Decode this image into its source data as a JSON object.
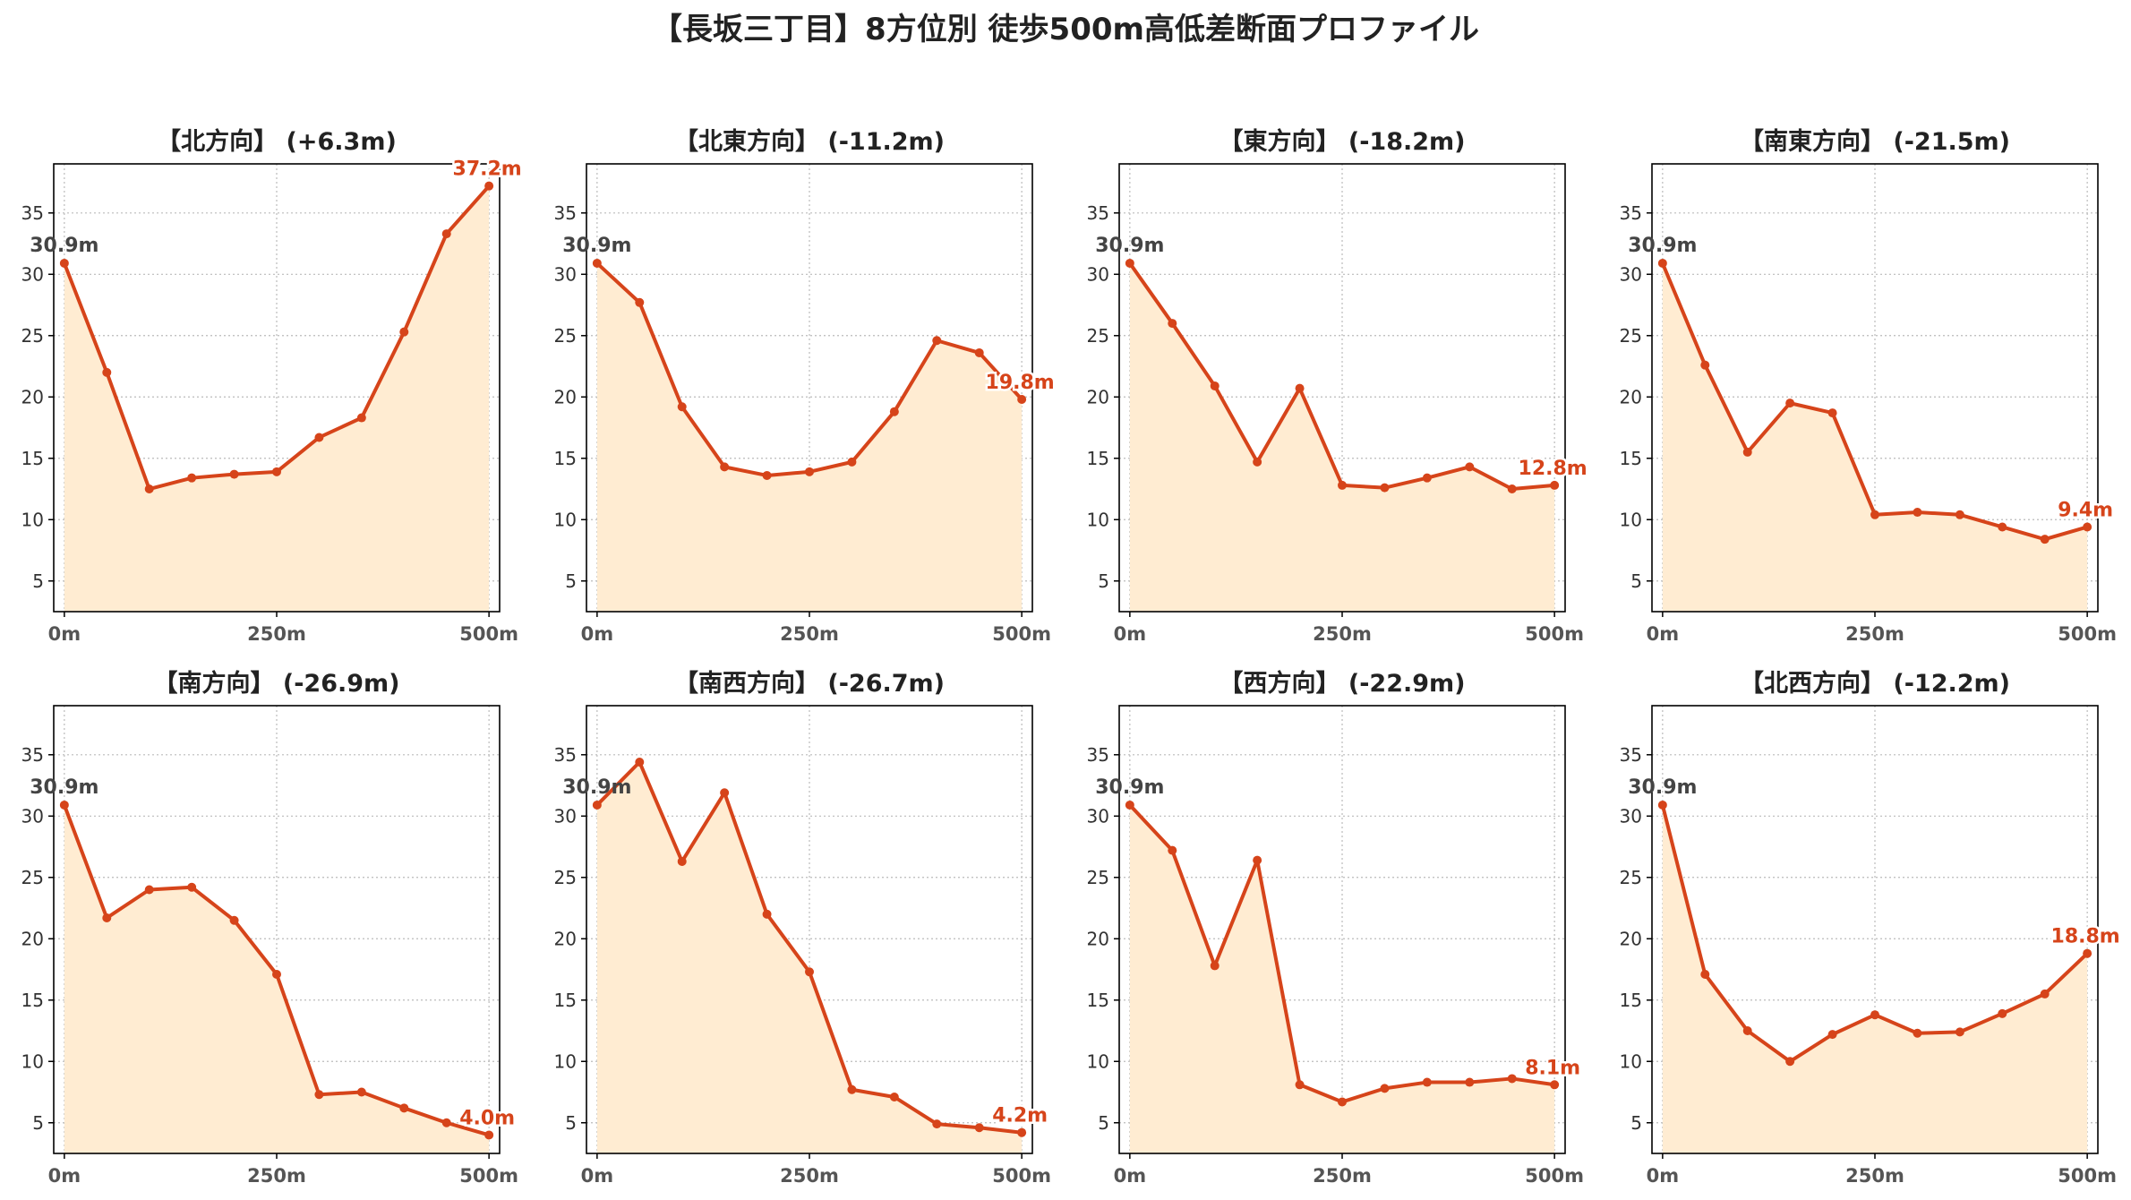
{
  "title": "【長坂三丁目】8方位別 徒歩500m高低差断面プロファイル",
  "colors": {
    "line": "#d6441a",
    "fill": "#ffecd2",
    "start_label": "#444444",
    "end_label": "#d6441a",
    "grid": "#bbbbbb"
  },
  "chart_data": [
    {
      "type": "area",
      "title": "【北方向】 (+6.3m)",
      "x": [
        0,
        50,
        100,
        150,
        200,
        250,
        300,
        350,
        400,
        450,
        500
      ],
      "values": [
        30.9,
        22.0,
        12.5,
        13.4,
        13.7,
        13.9,
        16.7,
        18.3,
        25.3,
        33.3,
        37.2
      ],
      "xticks": [
        "0m",
        "250m",
        "500m"
      ],
      "yticks": [
        5,
        10,
        15,
        20,
        25,
        30,
        35
      ],
      "ylim": [
        2.5,
        39
      ],
      "start_label": "30.9m",
      "end_label": "37.2m",
      "grid": true
    },
    {
      "type": "area",
      "title": "【北東方向】 (-11.2m)",
      "x": [
        0,
        50,
        100,
        150,
        200,
        250,
        300,
        350,
        400,
        450,
        500
      ],
      "values": [
        30.9,
        27.7,
        19.2,
        14.3,
        13.6,
        13.9,
        14.7,
        18.8,
        24.6,
        23.6,
        19.8
      ],
      "xticks": [
        "0m",
        "250m",
        "500m"
      ],
      "yticks": [
        5,
        10,
        15,
        20,
        25,
        30,
        35
      ],
      "ylim": [
        2.5,
        39
      ],
      "start_label": "30.9m",
      "end_label": "19.8m",
      "grid": true
    },
    {
      "type": "area",
      "title": "【東方向】 (-18.2m)",
      "x": [
        0,
        50,
        100,
        150,
        200,
        250,
        300,
        350,
        400,
        450,
        500
      ],
      "values": [
        30.9,
        26.0,
        20.9,
        14.7,
        20.7,
        12.8,
        12.6,
        13.4,
        14.3,
        12.5,
        12.8
      ],
      "xticks": [
        "0m",
        "250m",
        "500m"
      ],
      "yticks": [
        5,
        10,
        15,
        20,
        25,
        30,
        35
      ],
      "ylim": [
        2.5,
        39
      ],
      "start_label": "30.9m",
      "end_label": "12.8m",
      "grid": true
    },
    {
      "type": "area",
      "title": "【南東方向】 (-21.5m)",
      "x": [
        0,
        50,
        100,
        150,
        200,
        250,
        300,
        350,
        400,
        450,
        500
      ],
      "values": [
        30.9,
        22.6,
        15.5,
        19.5,
        18.7,
        10.4,
        10.6,
        10.4,
        9.4,
        8.4,
        9.4
      ],
      "xticks": [
        "0m",
        "250m",
        "500m"
      ],
      "yticks": [
        5,
        10,
        15,
        20,
        25,
        30,
        35
      ],
      "ylim": [
        2.5,
        39
      ],
      "start_label": "30.9m",
      "end_label": "9.4m",
      "grid": true
    },
    {
      "type": "area",
      "title": "【南方向】 (-26.9m)",
      "x": [
        0,
        50,
        100,
        150,
        200,
        250,
        300,
        350,
        400,
        450,
        500
      ],
      "values": [
        30.9,
        21.7,
        24.0,
        24.2,
        21.5,
        17.1,
        7.3,
        7.5,
        6.2,
        5.0,
        4.0
      ],
      "xticks": [
        "0m",
        "250m",
        "500m"
      ],
      "yticks": [
        5,
        10,
        15,
        20,
        25,
        30,
        35
      ],
      "ylim": [
        2.5,
        39
      ],
      "start_label": "30.9m",
      "end_label": "4.0m",
      "grid": true
    },
    {
      "type": "area",
      "title": "【南西方向】 (-26.7m)",
      "x": [
        0,
        50,
        100,
        150,
        200,
        250,
        300,
        350,
        400,
        450,
        500
      ],
      "values": [
        30.9,
        34.4,
        26.3,
        31.9,
        22.0,
        17.3,
        7.7,
        7.1,
        4.9,
        4.6,
        4.2
      ],
      "xticks": [
        "0m",
        "250m",
        "500m"
      ],
      "yticks": [
        5,
        10,
        15,
        20,
        25,
        30,
        35
      ],
      "ylim": [
        2.5,
        39
      ],
      "start_label": "30.9m",
      "end_label": "4.2m",
      "grid": true
    },
    {
      "type": "area",
      "title": "【西方向】 (-22.9m)",
      "x": [
        0,
        50,
        100,
        150,
        200,
        250,
        300,
        350,
        400,
        450,
        500
      ],
      "values": [
        30.9,
        27.2,
        17.8,
        26.4,
        8.1,
        6.7,
        7.8,
        8.3,
        8.3,
        8.6,
        8.1
      ],
      "xticks": [
        "0m",
        "250m",
        "500m"
      ],
      "yticks": [
        5,
        10,
        15,
        20,
        25,
        30,
        35
      ],
      "ylim": [
        2.5,
        39
      ],
      "start_label": "30.9m",
      "end_label": "8.1m",
      "grid": true
    },
    {
      "type": "area",
      "title": "【北西方向】 (-12.2m)",
      "x": [
        0,
        50,
        100,
        150,
        200,
        250,
        300,
        350,
        400,
        450,
        500
      ],
      "values": [
        30.9,
        17.1,
        12.5,
        10.0,
        12.2,
        13.8,
        12.3,
        12.4,
        13.9,
        15.5,
        18.8
      ],
      "xticks": [
        "0m",
        "250m",
        "500m"
      ],
      "yticks": [
        5,
        10,
        15,
        20,
        25,
        30,
        35
      ],
      "ylim": [
        2.5,
        39
      ],
      "start_label": "30.9m",
      "end_label": "18.8m",
      "grid": true
    }
  ]
}
